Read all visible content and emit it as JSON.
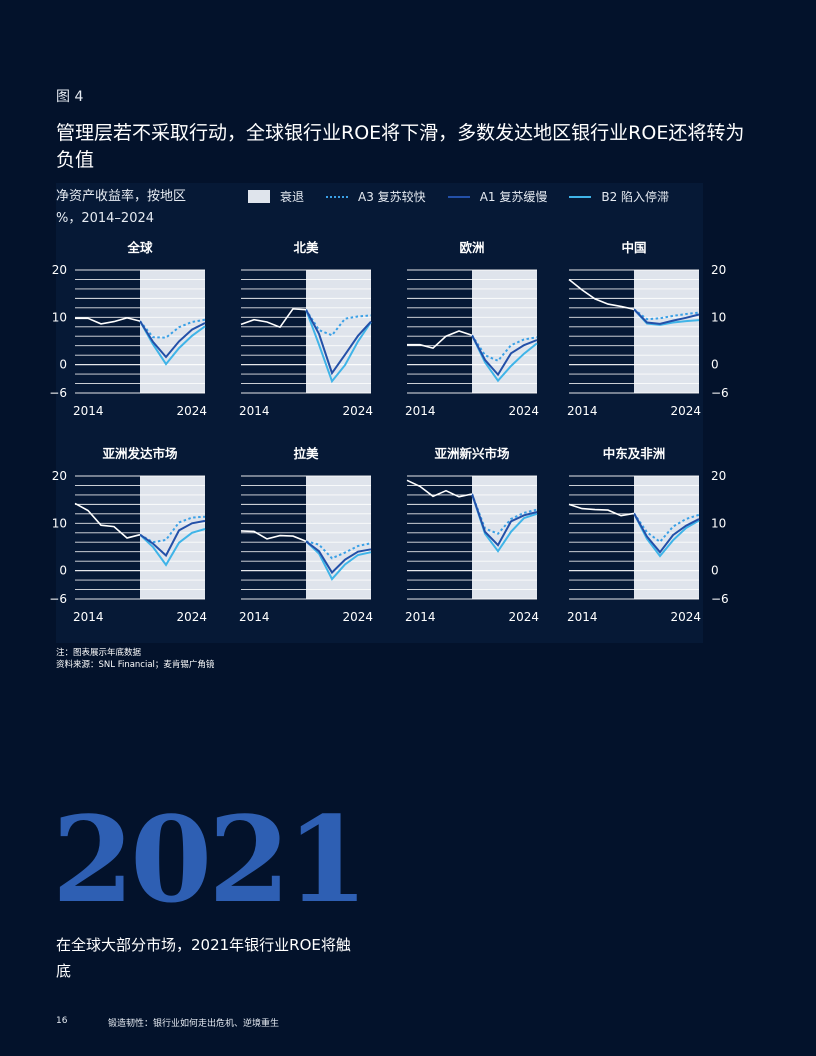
{
  "figure_label": "图 4",
  "headline": "管理层若不采取行动，全球银行业ROE将下滑，多数发达地区银行业ROE还将转为负值",
  "subtitle_line1": "净资产收益率，按地区",
  "subtitle_line2": "%，2014–2024",
  "legend": {
    "recession": "衰退",
    "a3": "A3 复苏较快",
    "a1": "A1 复苏缓慢",
    "b2": "B2 陷入停滞"
  },
  "colors": {
    "background": "#03122b",
    "chart_panel": "#061936",
    "recession_band": "#dfe4ec",
    "history": "#ffffff",
    "a3": "#3aa0e6",
    "a1": "#2350a8",
    "b2": "#3fb4e8",
    "big_year": "#2e5fb3"
  },
  "chart_data": {
    "type": "line",
    "y_ticks": [
      20,
      10,
      0,
      -6
    ],
    "y_tick_labels": [
      "20",
      "10",
      "0",
      "−6"
    ],
    "x_tick_labels": [
      "2014",
      "2024"
    ],
    "ylim": [
      -6,
      20
    ],
    "xlim": [
      2014,
      2024
    ],
    "recession_start": 2019,
    "panels": [
      {
        "title": "全球",
        "history": {
          "x": [
            2014,
            2015,
            2016,
            2017,
            2018,
            2019
          ],
          "y": [
            9.8,
            9.8,
            8.6,
            9.1,
            9.9,
            9.2
          ]
        },
        "a3": {
          "x": [
            2019,
            2020,
            2021,
            2022,
            2023,
            2024
          ],
          "y": [
            9.2,
            5.8,
            5.7,
            7.9,
            9.0,
            9.5
          ]
        },
        "a1": {
          "x": [
            2019,
            2020,
            2021,
            2022,
            2023,
            2024
          ],
          "y": [
            9.2,
            4.8,
            1.6,
            4.9,
            7.4,
            8.8
          ]
        },
        "b2": {
          "x": [
            2019,
            2020,
            2021,
            2022,
            2023,
            2024
          ],
          "y": [
            9.2,
            4.3,
            0.1,
            3.5,
            6.1,
            8.1
          ]
        }
      },
      {
        "title": "北美",
        "history": {
          "x": [
            2014,
            2015,
            2016,
            2017,
            2018,
            2019
          ],
          "y": [
            8.5,
            9.5,
            9.0,
            7.9,
            11.8,
            11.6
          ]
        },
        "a3": {
          "x": [
            2019,
            2020,
            2021,
            2022,
            2023,
            2024
          ],
          "y": [
            11.6,
            7.3,
            6.2,
            9.7,
            10.2,
            10.4
          ]
        },
        "a1": {
          "x": [
            2019,
            2020,
            2021,
            2022,
            2023,
            2024
          ],
          "y": [
            11.6,
            6.5,
            -1.8,
            2.1,
            6.1,
            9.1
          ]
        },
        "b2": {
          "x": [
            2019,
            2020,
            2021,
            2022,
            2023,
            2024
          ],
          "y": [
            11.6,
            4.2,
            -3.5,
            -0.1,
            4.9,
            9.0
          ]
        }
      },
      {
        "title": "欧洲",
        "history": {
          "x": [
            2014,
            2015,
            2016,
            2017,
            2018,
            2019
          ],
          "y": [
            4.2,
            4.2,
            3.5,
            6.0,
            7.1,
            6.2
          ]
        },
        "a3": {
          "x": [
            2019,
            2020,
            2021,
            2022,
            2023,
            2024
          ],
          "y": [
            6.2,
            2.0,
            0.8,
            4.1,
            5.3,
            5.8
          ]
        },
        "a1": {
          "x": [
            2019,
            2020,
            2021,
            2022,
            2023,
            2024
          ],
          "y": [
            6.2,
            1.0,
            -2.1,
            2.4,
            4.1,
            5.2
          ]
        },
        "b2": {
          "x": [
            2019,
            2020,
            2021,
            2022,
            2023,
            2024
          ],
          "y": [
            6.2,
            0.5,
            -3.4,
            -0.3,
            2.3,
            4.5
          ]
        }
      },
      {
        "title": "中国",
        "history": {
          "x": [
            2014,
            2015,
            2016,
            2017,
            2018,
            2019
          ],
          "y": [
            18.0,
            15.8,
            13.9,
            12.8,
            12.3,
            11.7
          ]
        },
        "a3": {
          "x": [
            2019,
            2020,
            2021,
            2022,
            2023,
            2024
          ],
          "y": [
            11.7,
            9.6,
            9.8,
            10.3,
            10.7,
            11.0
          ]
        },
        "a1": {
          "x": [
            2019,
            2020,
            2021,
            2022,
            2023,
            2024
          ],
          "y": [
            11.7,
            8.9,
            8.6,
            9.3,
            9.9,
            10.6
          ]
        },
        "b2": {
          "x": [
            2019,
            2020,
            2021,
            2022,
            2023,
            2024
          ],
          "y": [
            11.7,
            8.7,
            8.4,
            8.9,
            9.2,
            9.4
          ]
        }
      },
      {
        "title": "亚洲发达市场",
        "history": {
          "x": [
            2014,
            2015,
            2016,
            2017,
            2018,
            2019
          ],
          "y": [
            14.2,
            12.7,
            9.6,
            9.3,
            6.9,
            7.6
          ]
        },
        "a3": {
          "x": [
            2019,
            2020,
            2021,
            2022,
            2023,
            2024
          ],
          "y": [
            7.6,
            6.0,
            6.5,
            10.2,
            11.2,
            11.4
          ]
        },
        "a1": {
          "x": [
            2019,
            2020,
            2021,
            2022,
            2023,
            2024
          ],
          "y": [
            7.6,
            5.7,
            3.2,
            8.5,
            10.0,
            10.5
          ]
        },
        "b2": {
          "x": [
            2019,
            2020,
            2021,
            2022,
            2023,
            2024
          ],
          "y": [
            7.6,
            5.0,
            1.2,
            5.9,
            8.0,
            8.8
          ]
        }
      },
      {
        "title": "拉美",
        "history": {
          "x": [
            2014,
            2015,
            2016,
            2017,
            2018,
            2019
          ],
          "y": [
            8.4,
            8.3,
            6.7,
            7.4,
            7.3,
            6.2
          ]
        },
        "a3": {
          "x": [
            2019,
            2020,
            2021,
            2022,
            2023,
            2024
          ],
          "y": [
            6.2,
            5.5,
            2.6,
            3.8,
            5.2,
            5.8
          ]
        },
        "a1": {
          "x": [
            2019,
            2020,
            2021,
            2022,
            2023,
            2024
          ],
          "y": [
            6.2,
            4.1,
            -0.4,
            2.3,
            4.0,
            4.5
          ]
        },
        "b2": {
          "x": [
            2019,
            2020,
            2021,
            2022,
            2023,
            2024
          ],
          "y": [
            6.2,
            3.6,
            -1.8,
            1.3,
            3.3,
            3.9
          ]
        }
      },
      {
        "title": "亚洲新兴市场",
        "history": {
          "x": [
            2014,
            2015,
            2016,
            2017,
            2018,
            2019
          ],
          "y": [
            19.1,
            17.8,
            15.7,
            16.9,
            15.6,
            16.2
          ]
        },
        "a3": {
          "x": [
            2019,
            2020,
            2021,
            2022,
            2023,
            2024
          ],
          "y": [
            16.2,
            8.9,
            7.8,
            10.9,
            12.2,
            12.9
          ]
        },
        "a1": {
          "x": [
            2019,
            2020,
            2021,
            2022,
            2023,
            2024
          ],
          "y": [
            16.2,
            8.2,
            5.4,
            10.4,
            11.7,
            12.4
          ]
        },
        "b2": {
          "x": [
            2019,
            2020,
            2021,
            2022,
            2023,
            2024
          ],
          "y": [
            16.2,
            7.8,
            4.1,
            8.2,
            11.1,
            12.0
          ]
        }
      },
      {
        "title": "中东及非洲",
        "history": {
          "x": [
            2014,
            2015,
            2016,
            2017,
            2018,
            2019
          ],
          "y": [
            14.0,
            13.1,
            12.9,
            12.8,
            11.6,
            12.1
          ]
        },
        "a3": {
          "x": [
            2019,
            2020,
            2021,
            2022,
            2023,
            2024
          ],
          "y": [
            12.1,
            8.1,
            6.1,
            9.3,
            10.9,
            11.8
          ]
        },
        "a1": {
          "x": [
            2019,
            2020,
            2021,
            2022,
            2023,
            2024
          ],
          "y": [
            12.1,
            7.2,
            3.9,
            7.5,
            9.5,
            10.9
          ]
        },
        "b2": {
          "x": [
            2019,
            2020,
            2021,
            2022,
            2023,
            2024
          ],
          "y": [
            12.1,
            6.7,
            3.1,
            6.4,
            9.0,
            10.6
          ]
        }
      }
    ]
  },
  "notes": {
    "line1": "注：图表展示年底数据",
    "line2": "资料来源：SNL Financial；麦肯锡广角镜"
  },
  "big_year": "2021",
  "caption": "在全球大部分市场，2021年银行业ROE将触底",
  "footer": {
    "page": "16",
    "title": "锻造韧性：银行业如何走出危机、逆境重生"
  }
}
